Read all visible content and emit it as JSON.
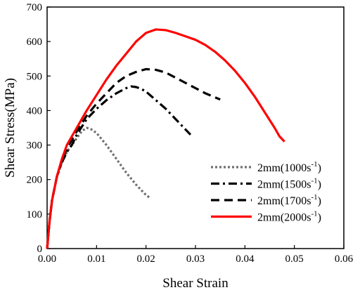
{
  "chart_data": {
    "type": "line",
    "xlabel": "Shear Strain",
    "ylabel": "Shear Stress(MPa)",
    "xlim": [
      0.0,
      0.06
    ],
    "ylim": [
      0,
      700
    ],
    "xticks": [
      "0.00",
      "0.01",
      "0.02",
      "0.03",
      "0.04",
      "0.05",
      "0.06"
    ],
    "yticks": [
      "0",
      "100",
      "200",
      "300",
      "400",
      "500",
      "600",
      "700"
    ],
    "legend_position": "right-middle",
    "grid": false,
    "series": [
      {
        "name": "2mm(1000s-1)",
        "label_main": "2mm(1000s",
        "label_sup": "-1",
        "label_end": ")",
        "color": "#707070",
        "dash": "dotted",
        "x": [
          0.0,
          0.0005,
          0.001,
          0.002,
          0.003,
          0.004,
          0.005,
          0.006,
          0.007,
          0.008,
          0.009,
          0.01,
          0.012,
          0.014,
          0.016,
          0.018,
          0.02,
          0.021
        ],
        "y": [
          0,
          80,
          140,
          210,
          250,
          280,
          300,
          320,
          340,
          350,
          345,
          335,
          300,
          260,
          220,
          185,
          155,
          145
        ]
      },
      {
        "name": "2mm(1500s-1)",
        "label_main": "2mm(1500s",
        "label_sup": "-1",
        "label_end": ")",
        "color": "#000000",
        "dash": "dashdot",
        "x": [
          0.0,
          0.0005,
          0.001,
          0.002,
          0.003,
          0.004,
          0.005,
          0.006,
          0.008,
          0.01,
          0.012,
          0.014,
          0.016,
          0.017,
          0.018,
          0.019,
          0.02,
          0.022,
          0.024,
          0.026,
          0.028,
          0.029
        ],
        "y": [
          0,
          80,
          140,
          210,
          250,
          280,
          300,
          330,
          375,
          405,
          430,
          450,
          465,
          470,
          468,
          463,
          455,
          430,
          405,
          375,
          345,
          330
        ]
      },
      {
        "name": "2mm(1700s-1)",
        "label_main": "2mm(1700s",
        "label_sup": "-1",
        "label_end": ")",
        "color": "#000000",
        "dash": "dashed",
        "x": [
          0.0,
          0.0005,
          0.001,
          0.002,
          0.003,
          0.004,
          0.006,
          0.008,
          0.01,
          0.012,
          0.014,
          0.016,
          0.018,
          0.02,
          0.022,
          0.024,
          0.026,
          0.028,
          0.03,
          0.032,
          0.035
        ],
        "y": [
          0,
          80,
          140,
          210,
          255,
          290,
          340,
          385,
          420,
          450,
          480,
          500,
          512,
          520,
          518,
          510,
          495,
          480,
          465,
          450,
          432
        ]
      },
      {
        "name": "2mm(2000s-1)",
        "label_main": "2mm(2000s",
        "label_sup": "-1",
        "label_end": ")",
        "color": "#ff0000",
        "dash": "solid",
        "x": [
          0.0,
          0.0005,
          0.001,
          0.002,
          0.003,
          0.004,
          0.006,
          0.008,
          0.01,
          0.012,
          0.014,
          0.016,
          0.018,
          0.02,
          0.022,
          0.024,
          0.026,
          0.028,
          0.03,
          0.032,
          0.034,
          0.036,
          0.038,
          0.04,
          0.042,
          0.044,
          0.046,
          0.047,
          0.048
        ],
        "y": [
          0,
          80,
          140,
          210,
          260,
          300,
          350,
          400,
          445,
          490,
          530,
          565,
          600,
          625,
          635,
          633,
          625,
          615,
          605,
          590,
          570,
          545,
          515,
          480,
          440,
          395,
          350,
          325,
          310
        ]
      }
    ]
  }
}
